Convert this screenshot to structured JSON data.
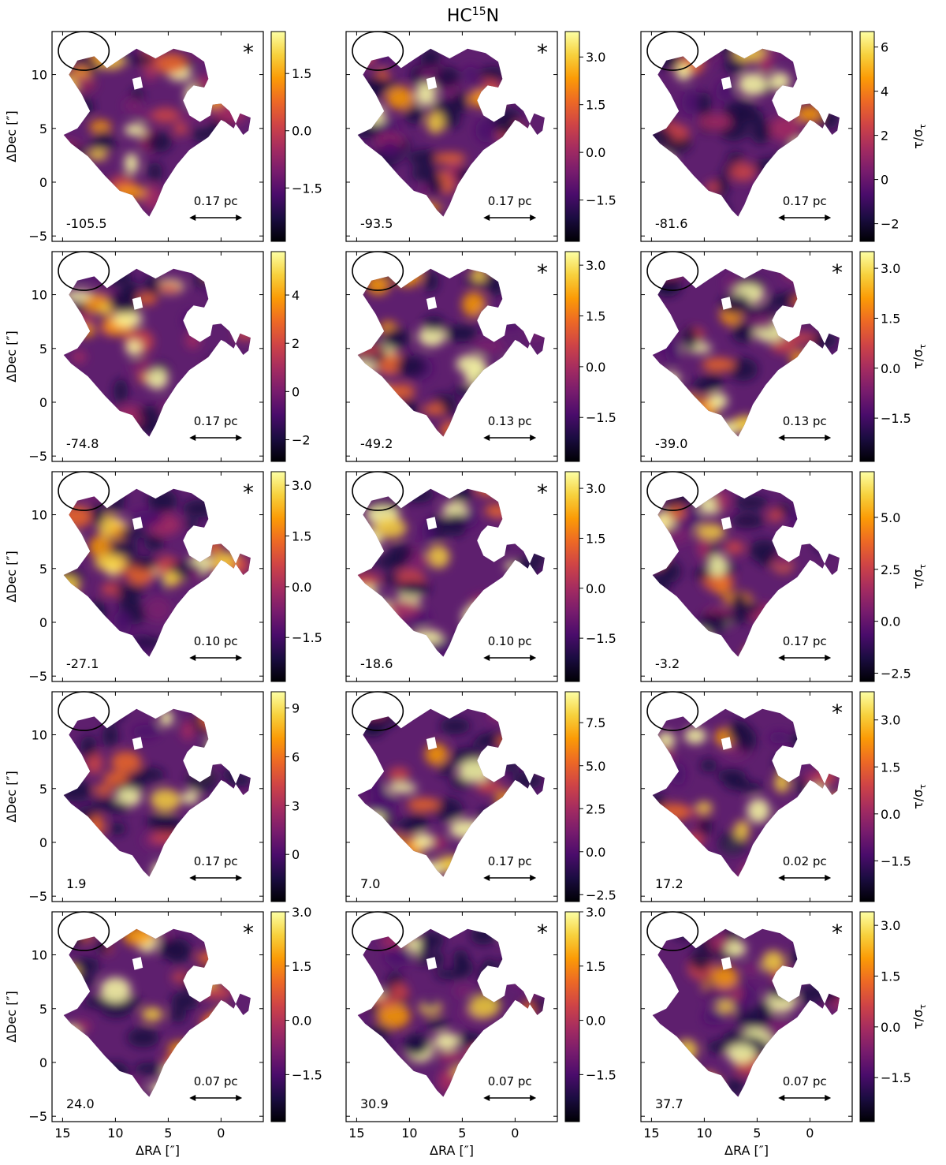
{
  "figure": {
    "title_main": "HC",
    "title_sup": "15",
    "title_tail": "N",
    "ylabel": "ΔDec [″]",
    "xlabel": "ΔRA [″]",
    "cbar_label_main": "τ/σ",
    "cbar_label_sub": "τ",
    "colormap": "inferno",
    "mask_hole_color": "#ffffff",
    "x_ticks": [
      "15",
      "10",
      "5",
      "0"
    ],
    "y_ticks": [
      "10",
      "5",
      "0",
      "−5"
    ],
    "x_tick_values": [
      15,
      10,
      5,
      0
    ],
    "y_tick_values": [
      10,
      5,
      0,
      -5
    ],
    "xlim": [
      16,
      -4
    ],
    "ylim": [
      -5.5,
      14
    ],
    "beam_ellipse": {
      "major_arcsec": 2.4,
      "minor_arcsec": 1.8
    }
  },
  "chart_data": [
    {
      "type": "heatmap",
      "velocity": "-105.5",
      "scale": "0.17 pc",
      "marker": "*",
      "cbar_ticks": [
        "1.5",
        "0.0",
        "−1.5"
      ],
      "cbar_values": [
        1.5,
        0.0,
        -1.5
      ],
      "cbar_range": [
        -2.9,
        2.6
      ]
    },
    {
      "type": "heatmap",
      "velocity": "-93.5",
      "scale": "0.17 pc",
      "marker": "*",
      "cbar_ticks": [
        "3.0",
        "1.5",
        "0.0",
        "−1.5"
      ],
      "cbar_values": [
        3.0,
        1.5,
        0.0,
        -1.5
      ],
      "cbar_range": [
        -2.8,
        3.8
      ]
    },
    {
      "type": "heatmap",
      "velocity": "-81.6",
      "scale": "0.17 pc",
      "marker": "",
      "cbar_ticks": [
        "6",
        "4",
        "2",
        "0",
        "−2"
      ],
      "cbar_values": [
        6,
        4,
        2,
        0,
        -2
      ],
      "cbar_range": [
        -2.8,
        6.7
      ]
    },
    {
      "type": "heatmap",
      "velocity": "-74.8",
      "scale": "0.17 pc",
      "marker": "",
      "cbar_ticks": [
        "4",
        "2",
        "0",
        "−2"
      ],
      "cbar_values": [
        4,
        2,
        0,
        -2
      ],
      "cbar_range": [
        -2.9,
        5.8
      ]
    },
    {
      "type": "heatmap",
      "velocity": "-49.2",
      "scale": "0.13 pc",
      "marker": "*",
      "cbar_ticks": [
        "3.0",
        "1.5",
        "0.0",
        "−1.5"
      ],
      "cbar_values": [
        3.0,
        1.5,
        0.0,
        -1.5
      ],
      "cbar_range": [
        -2.8,
        3.4
      ]
    },
    {
      "type": "heatmap",
      "velocity": "-39.0",
      "scale": "0.13 pc",
      "marker": "*",
      "cbar_ticks": [
        "3.0",
        "1.5",
        "0.0",
        "−1.5"
      ],
      "cbar_values": [
        3.0,
        1.5,
        0.0,
        -1.5
      ],
      "cbar_range": [
        -2.8,
        3.5
      ]
    },
    {
      "type": "heatmap",
      "velocity": "-27.1",
      "scale": "0.10 pc",
      "marker": "*",
      "cbar_ticks": [
        "3.0",
        "1.5",
        "0.0",
        "−1.5"
      ],
      "cbar_values": [
        3.0,
        1.5,
        0.0,
        -1.5
      ],
      "cbar_range": [
        -2.8,
        3.4
      ]
    },
    {
      "type": "heatmap",
      "velocity": "-18.6",
      "scale": "0.10 pc",
      "marker": "*",
      "cbar_ticks": [
        "3.0",
        "1.5",
        "0.0",
        "−1.5"
      ],
      "cbar_values": [
        3.0,
        1.5,
        0.0,
        -1.5
      ],
      "cbar_range": [
        -2.8,
        3.5
      ]
    },
    {
      "type": "heatmap",
      "velocity": "-3.2",
      "scale": "0.17 pc",
      "marker": "",
      "cbar_ticks": [
        "5.0",
        "2.5",
        "0.0",
        "−2.5"
      ],
      "cbar_values": [
        5.0,
        2.5,
        0.0,
        -2.5
      ],
      "cbar_range": [
        -2.9,
        7.2
      ]
    },
    {
      "type": "heatmap",
      "velocity": "1.9",
      "scale": "0.17 pc",
      "marker": "",
      "cbar_ticks": [
        "9",
        "6",
        "3",
        "0"
      ],
      "cbar_values": [
        9,
        6,
        3,
        0
      ],
      "cbar_range": [
        -2.9,
        10.0
      ]
    },
    {
      "type": "heatmap",
      "velocity": "7.0",
      "scale": "0.17 pc",
      "marker": "",
      "cbar_ticks": [
        "7.5",
        "5.0",
        "2.5",
        "0.0",
        "−2.5"
      ],
      "cbar_values": [
        7.5,
        5.0,
        2.5,
        0.0,
        -2.5
      ],
      "cbar_range": [
        -2.9,
        9.3
      ]
    },
    {
      "type": "heatmap",
      "velocity": "17.2",
      "scale": "0.02 pc",
      "marker": "*",
      "cbar_ticks": [
        "3.0",
        "1.5",
        "0.0",
        "−1.5"
      ],
      "cbar_values": [
        3.0,
        1.5,
        0.0,
        -1.5
      ],
      "cbar_range": [
        -2.8,
        3.9
      ]
    },
    {
      "type": "heatmap",
      "velocity": "24.0",
      "scale": "0.07 pc",
      "marker": "*",
      "cbar_ticks": [
        "3.0",
        "1.5",
        "0.0",
        "−1.5"
      ],
      "cbar_values": [
        3.0,
        1.5,
        0.0,
        -1.5
      ],
      "cbar_range": [
        -2.8,
        3.0
      ]
    },
    {
      "type": "heatmap",
      "velocity": "30.9",
      "scale": "0.07 pc",
      "marker": "*",
      "cbar_ticks": [
        "3.0",
        "1.5",
        "0.0",
        "−1.5"
      ],
      "cbar_values": [
        3.0,
        1.5,
        0.0,
        -1.5
      ],
      "cbar_range": [
        -2.8,
        3.0
      ]
    },
    {
      "type": "heatmap",
      "velocity": "37.7",
      "scale": "0.07 pc",
      "marker": "*",
      "cbar_ticks": [
        "3.0",
        "1.5",
        "0.0",
        "−1.5"
      ],
      "cbar_values": [
        3.0,
        1.5,
        0.0,
        -1.5
      ],
      "cbar_range": [
        -2.8,
        3.4
      ]
    }
  ]
}
